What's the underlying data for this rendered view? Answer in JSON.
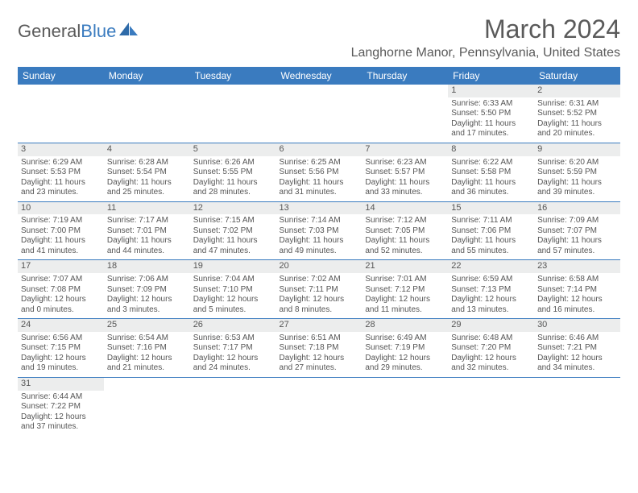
{
  "brand": {
    "part1": "General",
    "part2": "Blue"
  },
  "title": "March 2024",
  "location": "Langhorne Manor, Pennsylvania, United States",
  "colors": {
    "header_bg": "#3a7bbf",
    "header_fg": "#ffffff",
    "daynum_bg": "#eceded",
    "rule": "#3a7bbf",
    "text": "#555555"
  },
  "daynames": [
    "Sunday",
    "Monday",
    "Tuesday",
    "Wednesday",
    "Thursday",
    "Friday",
    "Saturday"
  ],
  "weeks": [
    [
      null,
      null,
      null,
      null,
      null,
      {
        "n": "1",
        "sr": "6:33 AM",
        "ss": "5:50 PM",
        "dl": "11 hours and 17 minutes."
      },
      {
        "n": "2",
        "sr": "6:31 AM",
        "ss": "5:52 PM",
        "dl": "11 hours and 20 minutes."
      }
    ],
    [
      {
        "n": "3",
        "sr": "6:29 AM",
        "ss": "5:53 PM",
        "dl": "11 hours and 23 minutes."
      },
      {
        "n": "4",
        "sr": "6:28 AM",
        "ss": "5:54 PM",
        "dl": "11 hours and 25 minutes."
      },
      {
        "n": "5",
        "sr": "6:26 AM",
        "ss": "5:55 PM",
        "dl": "11 hours and 28 minutes."
      },
      {
        "n": "6",
        "sr": "6:25 AM",
        "ss": "5:56 PM",
        "dl": "11 hours and 31 minutes."
      },
      {
        "n": "7",
        "sr": "6:23 AM",
        "ss": "5:57 PM",
        "dl": "11 hours and 33 minutes."
      },
      {
        "n": "8",
        "sr": "6:22 AM",
        "ss": "5:58 PM",
        "dl": "11 hours and 36 minutes."
      },
      {
        "n": "9",
        "sr": "6:20 AM",
        "ss": "5:59 PM",
        "dl": "11 hours and 39 minutes."
      }
    ],
    [
      {
        "n": "10",
        "sr": "7:19 AM",
        "ss": "7:00 PM",
        "dl": "11 hours and 41 minutes."
      },
      {
        "n": "11",
        "sr": "7:17 AM",
        "ss": "7:01 PM",
        "dl": "11 hours and 44 minutes."
      },
      {
        "n": "12",
        "sr": "7:15 AM",
        "ss": "7:02 PM",
        "dl": "11 hours and 47 minutes."
      },
      {
        "n": "13",
        "sr": "7:14 AM",
        "ss": "7:03 PM",
        "dl": "11 hours and 49 minutes."
      },
      {
        "n": "14",
        "sr": "7:12 AM",
        "ss": "7:05 PM",
        "dl": "11 hours and 52 minutes."
      },
      {
        "n": "15",
        "sr": "7:11 AM",
        "ss": "7:06 PM",
        "dl": "11 hours and 55 minutes."
      },
      {
        "n": "16",
        "sr": "7:09 AM",
        "ss": "7:07 PM",
        "dl": "11 hours and 57 minutes."
      }
    ],
    [
      {
        "n": "17",
        "sr": "7:07 AM",
        "ss": "7:08 PM",
        "dl": "12 hours and 0 minutes."
      },
      {
        "n": "18",
        "sr": "7:06 AM",
        "ss": "7:09 PM",
        "dl": "12 hours and 3 minutes."
      },
      {
        "n": "19",
        "sr": "7:04 AM",
        "ss": "7:10 PM",
        "dl": "12 hours and 5 minutes."
      },
      {
        "n": "20",
        "sr": "7:02 AM",
        "ss": "7:11 PM",
        "dl": "12 hours and 8 minutes."
      },
      {
        "n": "21",
        "sr": "7:01 AM",
        "ss": "7:12 PM",
        "dl": "12 hours and 11 minutes."
      },
      {
        "n": "22",
        "sr": "6:59 AM",
        "ss": "7:13 PM",
        "dl": "12 hours and 13 minutes."
      },
      {
        "n": "23",
        "sr": "6:58 AM",
        "ss": "7:14 PM",
        "dl": "12 hours and 16 minutes."
      }
    ],
    [
      {
        "n": "24",
        "sr": "6:56 AM",
        "ss": "7:15 PM",
        "dl": "12 hours and 19 minutes."
      },
      {
        "n": "25",
        "sr": "6:54 AM",
        "ss": "7:16 PM",
        "dl": "12 hours and 21 minutes."
      },
      {
        "n": "26",
        "sr": "6:53 AM",
        "ss": "7:17 PM",
        "dl": "12 hours and 24 minutes."
      },
      {
        "n": "27",
        "sr": "6:51 AM",
        "ss": "7:18 PM",
        "dl": "12 hours and 27 minutes."
      },
      {
        "n": "28",
        "sr": "6:49 AM",
        "ss": "7:19 PM",
        "dl": "12 hours and 29 minutes."
      },
      {
        "n": "29",
        "sr": "6:48 AM",
        "ss": "7:20 PM",
        "dl": "12 hours and 32 minutes."
      },
      {
        "n": "30",
        "sr": "6:46 AM",
        "ss": "7:21 PM",
        "dl": "12 hours and 34 minutes."
      }
    ],
    [
      {
        "n": "31",
        "sr": "6:44 AM",
        "ss": "7:22 PM",
        "dl": "12 hours and 37 minutes."
      },
      null,
      null,
      null,
      null,
      null,
      null
    ]
  ],
  "labels": {
    "sunrise": "Sunrise: ",
    "sunset": "Sunset: ",
    "daylight": "Daylight: "
  }
}
